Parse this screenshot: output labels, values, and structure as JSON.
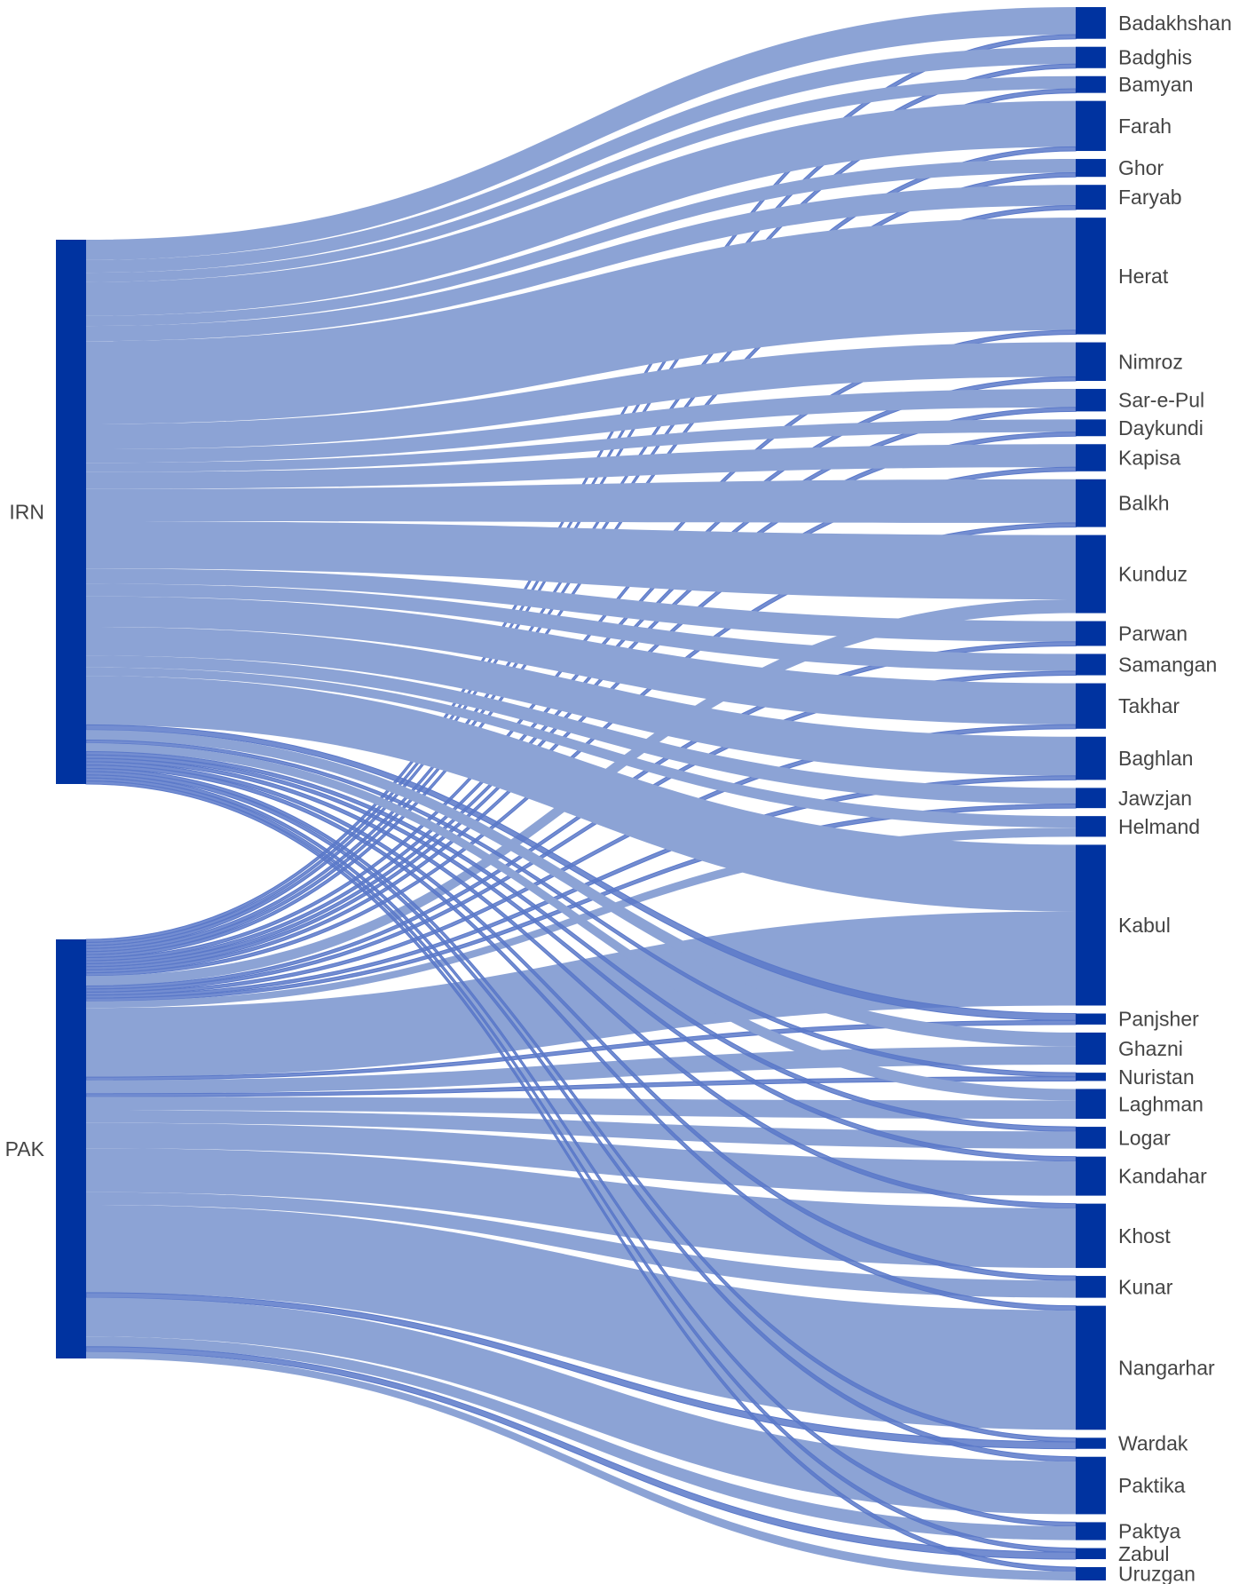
{
  "diagram": {
    "type": "sankey",
    "link_color": "#8ca3d5",
    "thin_link_color": "#5b79c9",
    "node_color": "#0033a0",
    "label_color": "#444444",
    "sources": [
      {
        "name": "IRN",
        "label": "IRN"
      },
      {
        "name": "PAK",
        "label": "PAK"
      }
    ],
    "targets": [
      {
        "name": "Badakhshan",
        "label": "Badakhshan",
        "irn": 1.2,
        "pak": 0.18
      },
      {
        "name": "Badghis",
        "label": "Badghis",
        "irn": 0.75,
        "pak": 0.18
      },
      {
        "name": "Bamyan",
        "label": "Bamyan",
        "irn": 0.55,
        "pak": 0.18
      },
      {
        "name": "Farah",
        "label": "Farah",
        "irn": 2.0,
        "pak": 0.18
      },
      {
        "name": "Ghor",
        "label": "Ghor",
        "irn": 0.6,
        "pak": 0.18
      },
      {
        "name": "Faryab",
        "label": "Faryab",
        "irn": 0.9,
        "pak": 0.18
      },
      {
        "name": "Herat",
        "label": "Herat",
        "irn": 4.9,
        "pak": 0.18
      },
      {
        "name": "Nimroz",
        "label": "Nimroz",
        "irn": 1.5,
        "pak": 0.18
      },
      {
        "name": "Sar-e-Pul",
        "label": "Sar-e-Pul",
        "irn": 0.8,
        "pak": 0.18
      },
      {
        "name": "Daykundi",
        "label": "Daykundi",
        "irn": 0.55,
        "pak": 0.18
      },
      {
        "name": "Kapisa",
        "label": "Kapisa",
        "irn": 1.0,
        "pak": 0.18
      },
      {
        "name": "Balkh",
        "label": "Balkh",
        "irn": 1.9,
        "pak": 0.18
      },
      {
        "name": "Kunduz",
        "label": "Kunduz",
        "irn": 2.8,
        "pak": 0.6
      },
      {
        "name": "Parwan",
        "label": "Parwan",
        "irn": 0.9,
        "pak": 0.18
      },
      {
        "name": "Samangan",
        "label": "Samangan",
        "irn": 0.75,
        "pak": 0.18
      },
      {
        "name": "Takhar",
        "label": "Takhar",
        "irn": 1.8,
        "pak": 0.18
      },
      {
        "name": "Baghlan",
        "label": "Baghlan",
        "irn": 1.7,
        "pak": 0.18
      },
      {
        "name": "Jawzjan",
        "label": "Jawzjan",
        "irn": 0.7,
        "pak": 0.18
      },
      {
        "name": "Helmand",
        "label": "Helmand",
        "irn": 0.5,
        "pak": 0.4
      },
      {
        "name": "Kabul",
        "label": "Kabul",
        "irn": 2.9,
        "pak": 4.1
      },
      {
        "name": "Panjsher",
        "label": "Panjsher",
        "irn": 0.3,
        "pak": 0.18
      },
      {
        "name": "Ghazni",
        "label": "Ghazni",
        "irn": 0.6,
        "pak": 0.8
      },
      {
        "name": "Nuristan",
        "label": "Nuristan",
        "irn": 0.18,
        "pak": 0.18
      },
      {
        "name": "Laghman",
        "label": "Laghman",
        "irn": 0.5,
        "pak": 0.8
      },
      {
        "name": "Logar",
        "label": "Logar",
        "irn": 0.2,
        "pak": 0.75
      },
      {
        "name": "Kandahar",
        "label": "Kandahar",
        "irn": 0.2,
        "pak": 1.5
      },
      {
        "name": "Khost",
        "label": "Khost",
        "irn": 0.2,
        "pak": 2.6
      },
      {
        "name": "Kunar",
        "label": "Kunar",
        "irn": 0.2,
        "pak": 0.75
      },
      {
        "name": "Nangarhar",
        "label": "Nangarhar",
        "irn": 0.2,
        "pak": 5.2
      },
      {
        "name": "Wardak",
        "label": "Wardak",
        "irn": 0.18,
        "pak": 0.3
      },
      {
        "name": "Paktika",
        "label": "Paktika",
        "irn": 0.2,
        "pak": 2.3
      },
      {
        "name": "Paktya",
        "label": "Paktya",
        "irn": 0.18,
        "pak": 0.6
      },
      {
        "name": "Zabul",
        "label": "Zabul",
        "irn": 0.18,
        "pak": 0.3
      },
      {
        "name": "Uruzgan",
        "label": "Uruzgan",
        "irn": 0.18,
        "pak": 0.4
      }
    ]
  }
}
